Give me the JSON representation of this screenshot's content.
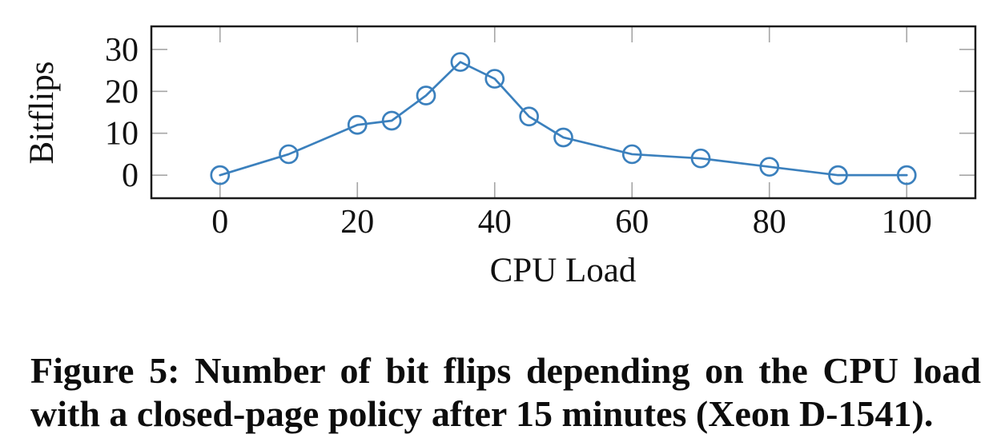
{
  "figure": {
    "caption": {
      "line1": "Figure 5: Number of bit flips depending on the CPU load",
      "line2": "with a closed-page policy after 15 minutes (Xeon D-1541)."
    }
  },
  "chart_data": {
    "type": "line",
    "title": "",
    "xlabel": "CPU Load",
    "ylabel": "Bitflips",
    "x": [
      0,
      10,
      20,
      25,
      30,
      35,
      40,
      45,
      50,
      60,
      70,
      80,
      90,
      100
    ],
    "y": [
      0,
      5,
      12,
      13,
      19,
      27,
      23,
      14,
      9,
      5,
      4,
      2,
      0,
      0
    ],
    "xlim": [
      -10,
      110
    ],
    "ylim": [
      -5.5,
      35.5
    ],
    "x_ticks": [
      0,
      20,
      40,
      60,
      80,
      100
    ],
    "y_ticks": [
      0,
      10,
      20,
      30
    ],
    "marker": "open-circle",
    "grid": false,
    "legend": "none",
    "colors": {
      "line": "#3b80bd",
      "tick": "#a6a6a6",
      "frame": "#1b1b1b",
      "text": "#111111"
    }
  }
}
